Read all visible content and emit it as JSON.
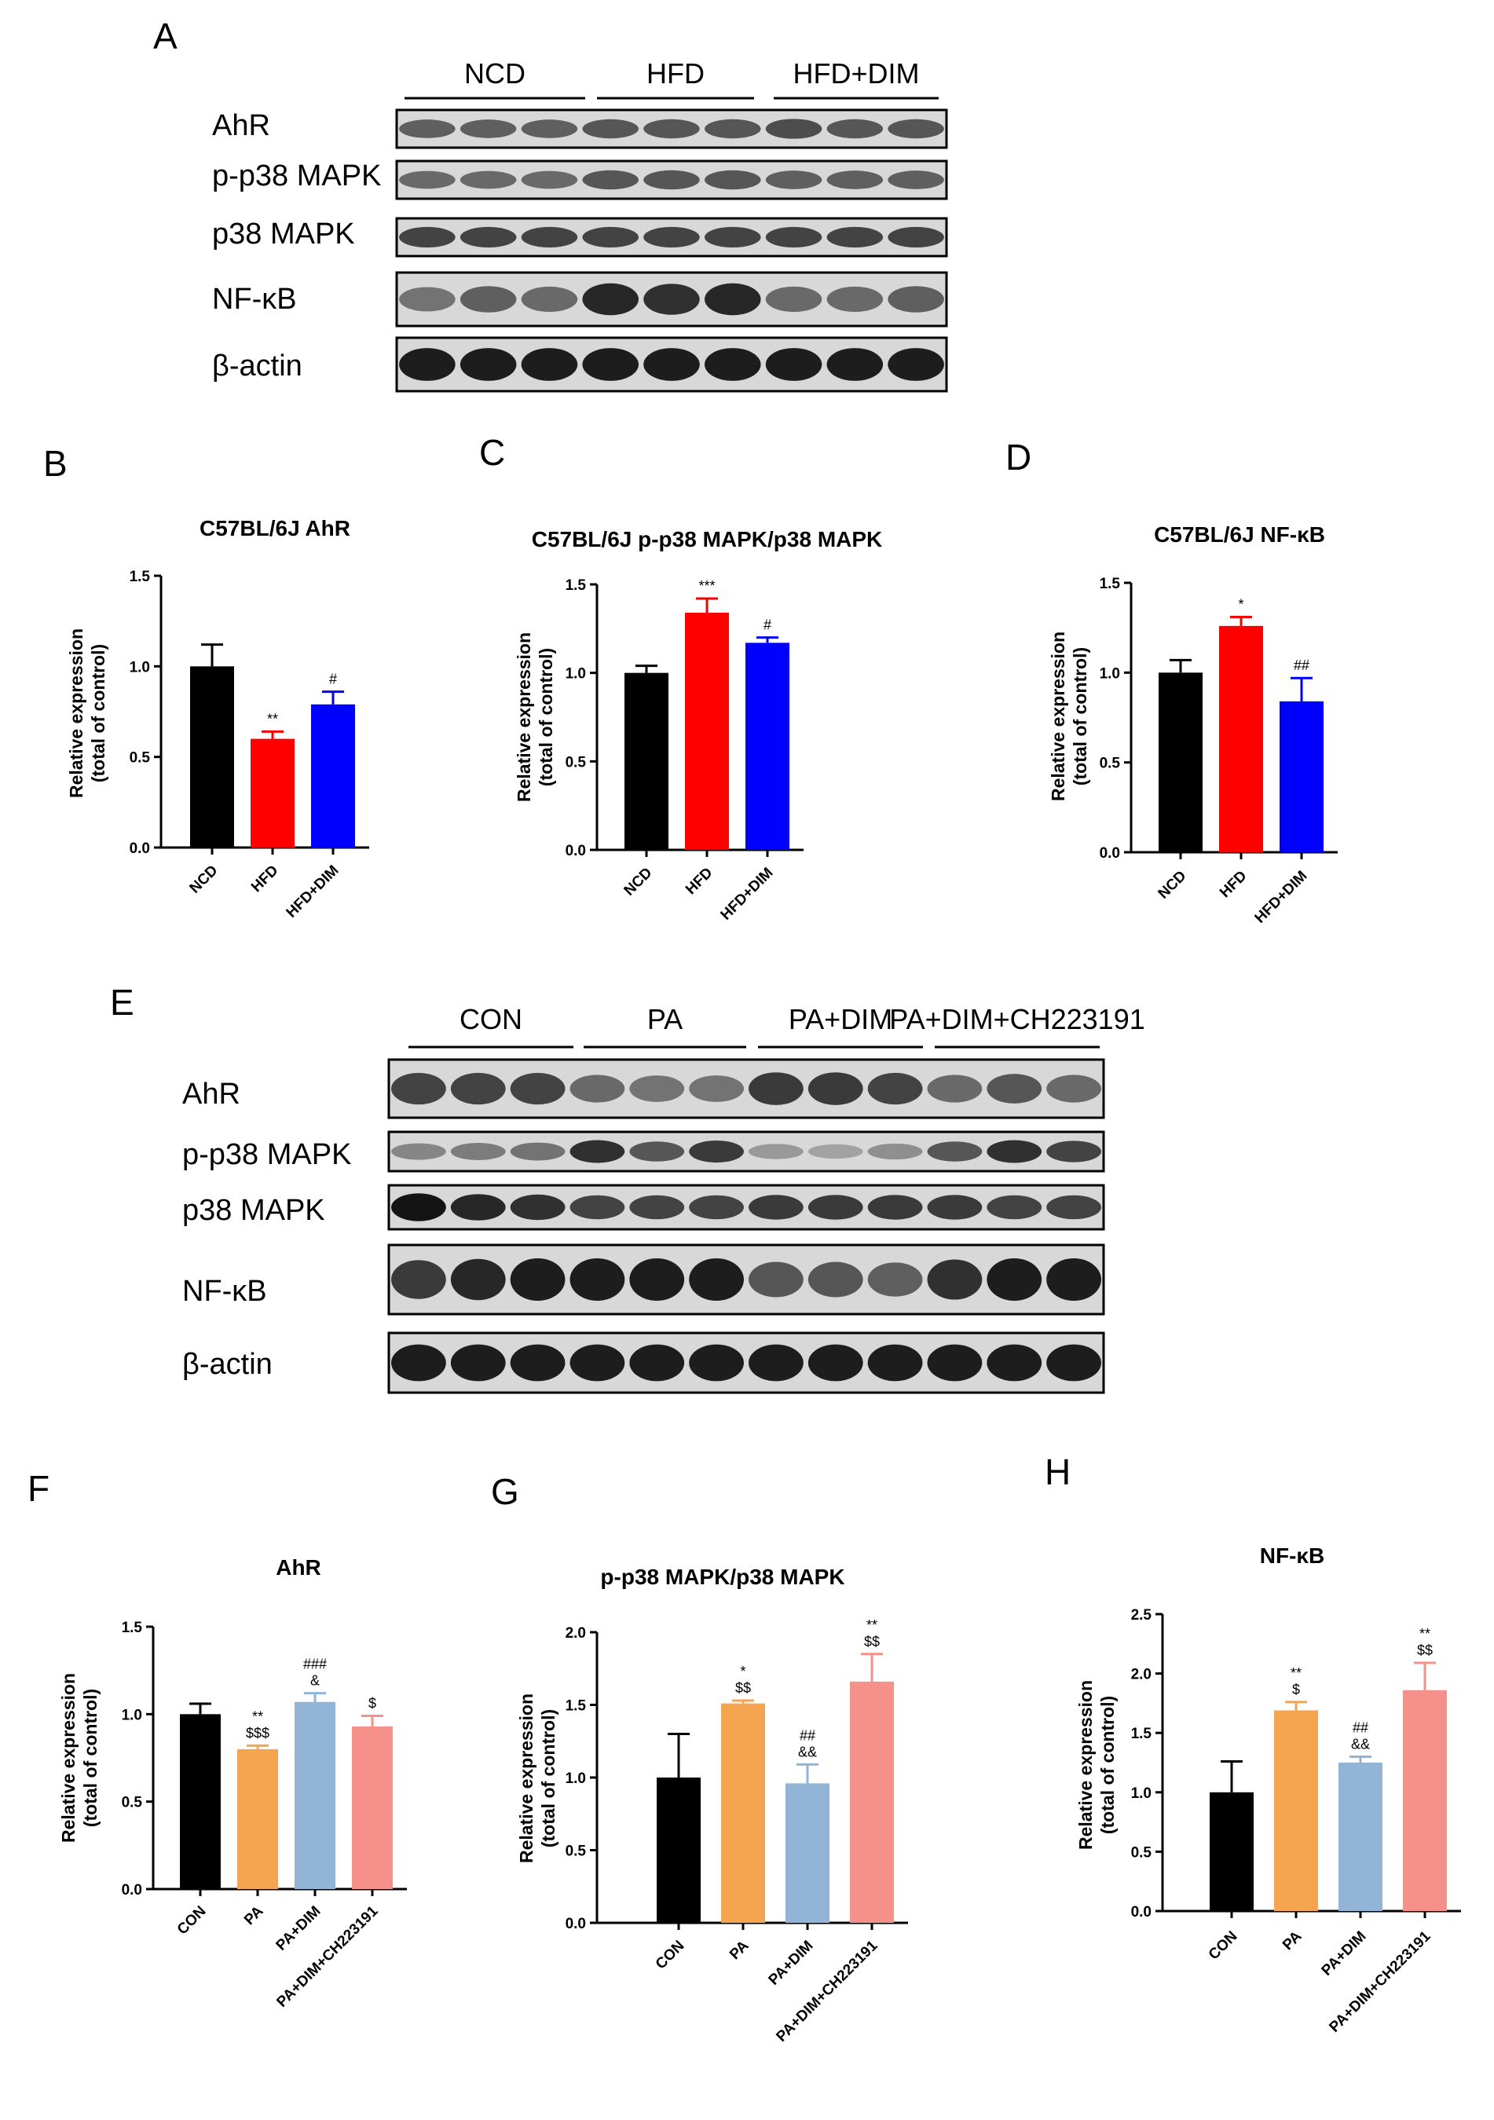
{
  "blots": [
    {
      "panel": "A",
      "groups": [
        "NCD",
        "HFD",
        "HFD+DIM"
      ],
      "rows": [
        "AhR",
        "p-p38 MAPK",
        "p38 MAPK",
        "NF-κB",
        "β-actin"
      ],
      "intensity": [
        [
          0.55,
          0.55,
          0.55,
          0.6,
          0.6,
          0.6,
          0.65,
          0.6,
          0.6
        ],
        [
          0.5,
          0.5,
          0.5,
          0.6,
          0.6,
          0.6,
          0.55,
          0.55,
          0.55
        ],
        [
          0.7,
          0.7,
          0.7,
          0.7,
          0.7,
          0.7,
          0.7,
          0.7,
          0.7
        ],
        [
          0.45,
          0.55,
          0.5,
          0.85,
          0.8,
          0.85,
          0.5,
          0.5,
          0.55
        ],
        [
          0.9,
          0.9,
          0.9,
          0.9,
          0.9,
          0.9,
          0.9,
          0.9,
          0.9
        ]
      ]
    },
    {
      "panel": "E",
      "groups": [
        "CON",
        "PA",
        "PA+DIM",
        "PA+DIM+CH223191"
      ],
      "rows": [
        "AhR",
        "p-p38 MAPK",
        "p38 MAPK",
        "NF-κB",
        "β-actin"
      ],
      "intensity": [
        [
          0.7,
          0.7,
          0.7,
          0.5,
          0.45,
          0.45,
          0.75,
          0.75,
          0.7,
          0.5,
          0.6,
          0.5
        ],
        [
          0.35,
          0.4,
          0.45,
          0.8,
          0.6,
          0.75,
          0.25,
          0.2,
          0.3,
          0.6,
          0.8,
          0.7
        ],
        [
          0.95,
          0.85,
          0.8,
          0.7,
          0.7,
          0.7,
          0.75,
          0.75,
          0.75,
          0.75,
          0.7,
          0.7
        ],
        [
          0.75,
          0.85,
          0.9,
          0.9,
          0.9,
          0.9,
          0.6,
          0.6,
          0.55,
          0.8,
          0.9,
          0.9
        ],
        [
          0.9,
          0.9,
          0.9,
          0.9,
          0.9,
          0.9,
          0.9,
          0.9,
          0.9,
          0.9,
          0.9,
          0.9
        ]
      ]
    }
  ],
  "axis_label": [
    "Relative expression",
    "(total of control)"
  ],
  "chart_data": [
    {
      "panel": "B",
      "type": "bar",
      "title": "C57BL/6J AhR",
      "categories": [
        "NCD",
        "HFD",
        "HFD+DIM"
      ],
      "values": [
        1.0,
        0.6,
        0.79
      ],
      "errors": [
        0.12,
        0.04,
        0.07
      ],
      "colors": [
        "#000000",
        "#ff0000",
        "#0000ff"
      ],
      "significance": [
        [],
        [
          "**"
        ],
        [
          "#"
        ]
      ],
      "ylim": [
        0,
        1.5
      ],
      "yticks": [
        "0.0",
        "0.5",
        "1.0",
        "1.5"
      ]
    },
    {
      "panel": "C",
      "type": "bar",
      "title": "C57BL/6J p-p38 MAPK/p38 MAPK",
      "categories": [
        "NCD",
        "HFD",
        "HFD+DIM"
      ],
      "values": [
        1.0,
        1.34,
        1.17
      ],
      "errors": [
        0.04,
        0.08,
        0.03
      ],
      "colors": [
        "#000000",
        "#ff0000",
        "#0000ff"
      ],
      "significance": [
        [],
        [
          "***"
        ],
        [
          "#"
        ]
      ],
      "ylim": [
        0,
        1.5
      ],
      "yticks": [
        "0.0",
        "0.5",
        "1.0",
        "1.5"
      ]
    },
    {
      "panel": "D",
      "type": "bar",
      "title": "C57BL/6J NF-κB",
      "categories": [
        "NCD",
        "HFD",
        "HFD+DIM"
      ],
      "values": [
        1.0,
        1.26,
        0.84
      ],
      "errors": [
        0.07,
        0.05,
        0.13
      ],
      "colors": [
        "#000000",
        "#ff0000",
        "#0000ff"
      ],
      "significance": [
        [],
        [
          "*"
        ],
        [
          "##"
        ]
      ],
      "ylim": [
        0,
        1.5
      ],
      "yticks": [
        "0.0",
        "0.5",
        "1.0",
        "1.5"
      ]
    },
    {
      "panel": "F",
      "type": "bar",
      "title": "AhR",
      "categories": [
        "CON",
        "PA",
        "PA+DIM",
        "PA+DIM+CH223191"
      ],
      "values": [
        1.0,
        0.8,
        1.07,
        0.93
      ],
      "errors": [
        0.06,
        0.02,
        0.05,
        0.06
      ],
      "colors": [
        "#000000",
        "#f5a550",
        "#92b4d6",
        "#f5908a"
      ],
      "significance": [
        [],
        [
          "**",
          "$$$"
        ],
        [
          "###",
          "&"
        ],
        [
          "$"
        ]
      ],
      "ylim": [
        0,
        1.5
      ],
      "yticks": [
        "0.0",
        "0.5",
        "1.0",
        "1.5"
      ]
    },
    {
      "panel": "G",
      "type": "bar",
      "title": "p-p38 MAPK/p38 MAPK",
      "categories": [
        "CON",
        "PA",
        "PA+DIM",
        "PA+DIM+CH223191"
      ],
      "values": [
        1.0,
        1.51,
        0.96,
        1.66
      ],
      "errors": [
        0.3,
        0.02,
        0.13,
        0.19
      ],
      "colors": [
        "#000000",
        "#f5a550",
        "#92b4d6",
        "#f5908a"
      ],
      "significance": [
        [],
        [
          "*",
          "$$"
        ],
        [
          "##",
          "&&"
        ],
        [
          "**",
          "$$"
        ]
      ],
      "ylim": [
        0,
        2.0
      ],
      "yticks": [
        "0.0",
        "0.5",
        "1.0",
        "1.5",
        "2.0"
      ]
    },
    {
      "panel": "H",
      "type": "bar",
      "title": "NF-κB",
      "categories": [
        "CON",
        "PA",
        "PA+DIM",
        "PA+DIM+CH223191"
      ],
      "values": [
        1.0,
        1.69,
        1.25,
        1.86
      ],
      "errors": [
        0.26,
        0.07,
        0.05,
        0.23
      ],
      "colors": [
        "#000000",
        "#f5a550",
        "#92b4d6",
        "#f5908a"
      ],
      "significance": [
        [],
        [
          "**",
          "$"
        ],
        [
          "##",
          "&&"
        ],
        [
          "**",
          "$$"
        ]
      ],
      "ylim": [
        0,
        2.5
      ],
      "yticks": [
        "0.0",
        "0.5",
        "1.0",
        "1.5",
        "2.0",
        "2.5"
      ]
    }
  ]
}
